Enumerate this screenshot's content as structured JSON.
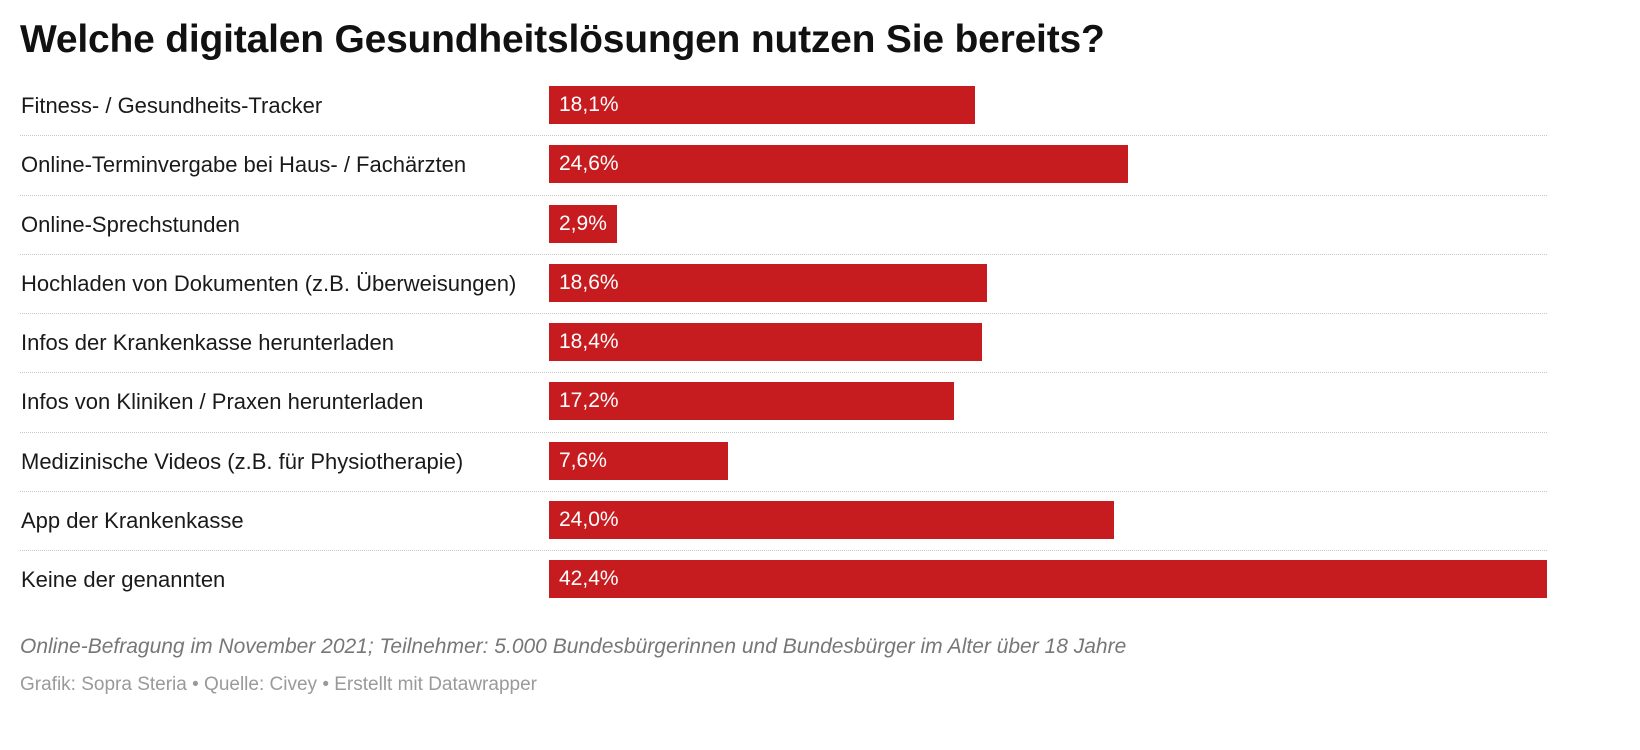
{
  "title": "Welche digitalen Gesundheitslösungen nutzen Sie bereits?",
  "chart_data": {
    "type": "bar",
    "orientation": "horizontal",
    "title": "Welche digitalen Gesundheitslösungen nutzen Sie bereits?",
    "categories": [
      "Fitness- / Gesundheits-Tracker",
      "Online-Terminvergabe bei Haus- / Fachärzten",
      "Online-Sprechstunden",
      "Hochladen von Dokumenten (z.B. Überweisungen)",
      "Infos der Krankenkasse herunterladen",
      "Infos von Kliniken / Praxen herunterladen",
      "Medizinische Videos (z.B. für Physiotherapie)",
      "App der Krankenkasse",
      "Keine der genannten"
    ],
    "values": [
      18.1,
      24.6,
      2.9,
      18.6,
      18.4,
      17.2,
      7.6,
      24.0,
      42.4
    ],
    "value_labels": [
      "18,1%",
      "24,6%",
      "2,9%",
      "18,6%",
      "18,4%",
      "17,2%",
      "7,6%",
      "24,0%",
      "42,4%"
    ],
    "unit": "%",
    "xlim": [
      0,
      42.4
    ],
    "grid": false,
    "bar_color": "#c71c1f"
  },
  "notes": "Online-Befragung im November 2021; Teilnehmer: 5.000 Bundesbürgerinnen und Bundesbürger im Alter über 18 Jahre",
  "credits": "Grafik: Sopra Steria • Quelle: Civey • Erstellt mit Datawrapper"
}
